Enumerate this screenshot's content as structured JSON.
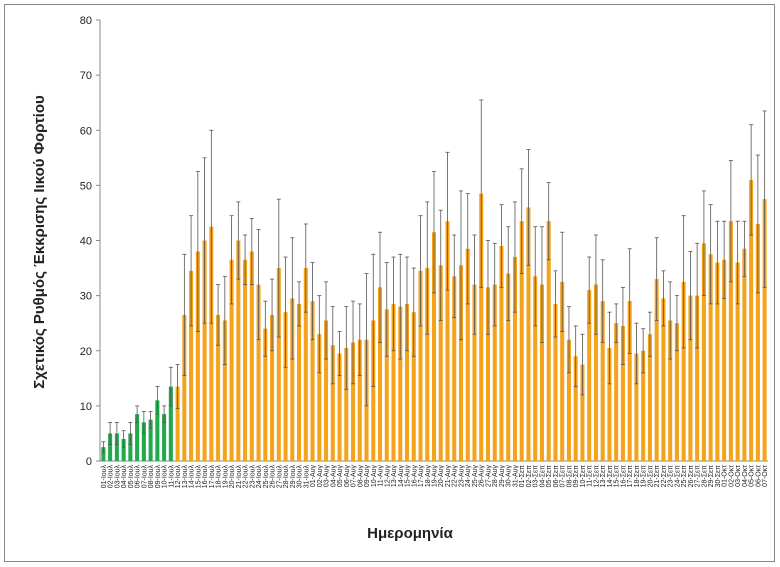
{
  "chart_data": {
    "type": "bar",
    "y_label": "Σχετικός Ρυθμός Έκκρισης Ιικού Φορτίου",
    "x_label": "Ημερομηνία",
    "categories": [
      "01-Ιουλ",
      "02-Ιουλ",
      "03-Ιουλ",
      "04-Ιουλ",
      "05-Ιουλ",
      "06-Ιουλ",
      "07-Ιουλ",
      "08-Ιουλ",
      "09-Ιουλ",
      "10-Ιουλ",
      "11-Ιουλ",
      "12-Ιουλ",
      "13-Ιουλ",
      "14-Ιουλ",
      "15-Ιουλ",
      "16-Ιουλ",
      "17-Ιουλ",
      "18-Ιουλ",
      "19-Ιουλ",
      "20-Ιουλ",
      "21-Ιουλ",
      "22-Ιουλ",
      "23-Ιουλ",
      "24-Ιουλ",
      "25-Ιουλ",
      "26-Ιουλ",
      "27-Ιουλ",
      "28-Ιουλ",
      "29-Ιουλ",
      "30-Ιουλ",
      "31-Ιουλ",
      "01-Αυγ",
      "02-Αυγ",
      "03-Αυγ",
      "04-Αυγ",
      "05-Αυγ",
      "06-Αυγ",
      "07-Αυγ",
      "08-Αυγ",
      "09-Αυγ",
      "10-Αυγ",
      "11-Αυγ",
      "12-Αυγ",
      "13-Αυγ",
      "14-Αυγ",
      "15-Αυγ",
      "16-Αυγ",
      "17-Αυγ",
      "18-Αυγ",
      "19-Αυγ",
      "20-Αυγ",
      "21-Αυγ",
      "22-Αυγ",
      "23-Αυγ",
      "24-Αυγ",
      "25-Αυγ",
      "26-Αυγ",
      "27-Αυγ",
      "28-Αυγ",
      "29-Αυγ",
      "30-Αυγ",
      "31-Αυγ",
      "01-Σεπ",
      "02-Σεπ",
      "03-Σεπ",
      "04-Σεπ",
      "05-Σεπ",
      "06-Σεπ",
      "07-Σεπ",
      "08-Σεπ",
      "09-Σεπ",
      "10-Σεπ",
      "11-Σεπ",
      "12-Σεπ",
      "13-Σεπ",
      "14-Σεπ",
      "15-Σεπ",
      "16-Σεπ",
      "17-Σεπ",
      "18-Σεπ",
      "19-Σεπ",
      "20-Σεπ",
      "21-Σεπ",
      "22-Σεπ",
      "23-Σεπ",
      "24-Σεπ",
      "25-Σεπ",
      "26-Σεπ",
      "27-Σεπ",
      "28-Σεπ",
      "29-Σεπ",
      "30-Σεπ",
      "01-Οκτ",
      "02-Οκτ",
      "03-Οκτ",
      "04-Οκτ",
      "05-Οκτ",
      "06-Οκτ",
      "07-Οκτ"
    ],
    "values": [
      2.5,
      5,
      5,
      4,
      5,
      8.5,
      7,
      7.5,
      11,
      8.5,
      13.5,
      13.5,
      26.5,
      34.5,
      38,
      40,
      42.5,
      26.5,
      25.5,
      36.5,
      40,
      36.5,
      38,
      32,
      24,
      26.5,
      35,
      27,
      29.5,
      28.5,
      35,
      29,
      23,
      25.5,
      21,
      19.5,
      20.5,
      21.5,
      22,
      22,
      25.5,
      31.5,
      27.5,
      28.5,
      28,
      28.5,
      27,
      34.5,
      35,
      41.5,
      35.5,
      43.5,
      33.5,
      35.5,
      38.5,
      32,
      48.5,
      31.5,
      32,
      39,
      34,
      37,
      43.5,
      46,
      33.5,
      32,
      43.5,
      28.5,
      32.5,
      22,
      19,
      17.5,
      31,
      32,
      29,
      20.5,
      25,
      24.5,
      29,
      19.5,
      20,
      23,
      33,
      29.5,
      25.5,
      25,
      32.5,
      30,
      30,
      39.5,
      37.5,
      36,
      36.5,
      43.5,
      36,
      38.5,
      51,
      43,
      47.5
    ],
    "errors": [
      1,
      2,
      2,
      1.5,
      2,
      1.5,
      2,
      1.5,
      2.5,
      1.5,
      3.5,
      4,
      11,
      10,
      14.5,
      15,
      17.5,
      5.5,
      8,
      8,
      7,
      4.5,
      6,
      10,
      5,
      6.5,
      12.5,
      10,
      11,
      4,
      8,
      7,
      7,
      7,
      7,
      4,
      7.5,
      7.5,
      6.5,
      12,
      12,
      10,
      8.5,
      8.5,
      9.5,
      8.5,
      8,
      10,
      12,
      11,
      10,
      12.5,
      7.5,
      13.5,
      10,
      9,
      17,
      8.5,
      7.5,
      7.5,
      8.5,
      10,
      9.5,
      10.5,
      9,
      10.5,
      7,
      6,
      9,
      6,
      5.5,
      5.5,
      6,
      9,
      7.5,
      6.5,
      3.5,
      7,
      9.5,
      5.5,
      4,
      4,
      7.5,
      5,
      7,
      5,
      12,
      8,
      9.5,
      9.5,
      9,
      7.5,
      7,
      11,
      7.5,
      5,
      10,
      12.5,
      16
    ],
    "bar_colors": [
      "#1faa4b",
      "#1faa4b",
      "#1faa4b",
      "#1faa4b",
      "#1faa4b",
      "#1faa4b",
      "#1faa4b",
      "#1faa4b",
      "#1faa4b",
      "#1faa4b",
      "#1faa4b",
      "#f5a31c",
      "#f5a31c",
      "#f5a31c",
      "#f5a31c",
      "#f5a31c",
      "#f5a31c",
      "#f5a31c",
      "#f5a31c",
      "#f5a31c",
      "#f5a31c",
      "#f5a31c",
      "#f5a31c",
      "#f5a31c",
      "#f5a31c",
      "#f5a31c",
      "#f5a31c",
      "#f5a31c",
      "#f5a31c",
      "#f5a31c",
      "#f5a31c",
      "#f5a31c",
      "#f5a31c",
      "#f5a31c",
      "#f5a31c",
      "#f5a31c",
      "#f5a31c",
      "#f5a31c",
      "#f5a31c",
      "#f5a31c",
      "#f5a31c",
      "#f5a31c",
      "#f5a31c",
      "#f5a31c",
      "#f5a31c",
      "#f5a31c",
      "#f5a31c",
      "#f5a31c",
      "#f5a31c",
      "#f5a31c",
      "#f5a31c",
      "#f5a31c",
      "#f5a31c",
      "#f5a31c",
      "#f5a31c",
      "#f5a31c",
      "#f5a31c",
      "#f5a31c",
      "#f5a31c",
      "#f5a31c",
      "#f5a31c",
      "#f5a31c",
      "#f5a31c",
      "#f5a31c",
      "#f5a31c",
      "#f5a31c",
      "#f5a31c",
      "#f5a31c",
      "#f5a31c",
      "#f5a31c",
      "#f5a31c",
      "#f5a31c",
      "#f5a31c",
      "#f5a31c",
      "#f5a31c",
      "#f5a31c",
      "#f5a31c",
      "#f5a31c",
      "#f5a31c",
      "#f5a31c",
      "#f5a31c",
      "#f5a31c",
      "#f5a31c",
      "#f5a31c",
      "#f5a31c",
      "#f5a31c",
      "#f5a31c",
      "#f5a31c",
      "#f5a31c",
      "#f5a31c",
      "#f5a31c",
      "#f5a31c",
      "#f5a31c",
      "#f5a31c",
      "#f5a31c",
      "#f5a31c",
      "#f5a31c",
      "#f5a31c",
      "#f5a31c"
    ],
    "error_color": "#555555",
    "ylim": [
      0,
      80
    ],
    "yticks": [
      0,
      10,
      20,
      30,
      40,
      50,
      60,
      70,
      80
    ],
    "grid": false
  }
}
